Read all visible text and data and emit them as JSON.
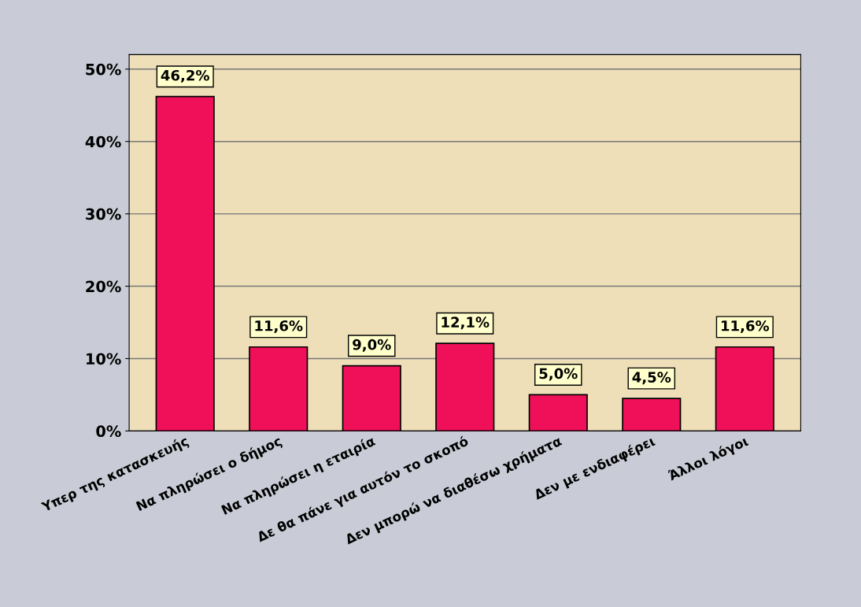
{
  "chart_data": {
    "type": "bar",
    "categories": [
      "Υπερ της κατασκευής",
      "Να πληρώσει ο δήμος",
      "Να πληρώσει η εταιρία",
      "Δε θα πάνε για αυτόν το σκοπό",
      "Δεν μπορώ να διαθέσω χρήματα",
      "Δεν με ενδιαφέρει",
      "Άλλοι λόγοι"
    ],
    "values": [
      46.2,
      11.6,
      9.0,
      12.1,
      5.0,
      4.5,
      11.6
    ],
    "value_labels": [
      "46,2%",
      "11,6%",
      "9,0%",
      "12,1%",
      "5,0%",
      "4,5%",
      "11,6%"
    ],
    "color": "#f0105a",
    "ylim": [
      0,
      52
    ],
    "yticks": [
      {
        "value": 0,
        "label": "0%"
      },
      {
        "value": 10,
        "label": "10%"
      },
      {
        "value": 20,
        "label": "20%"
      },
      {
        "value": 30,
        "label": "30%"
      },
      {
        "value": 40,
        "label": "40%"
      },
      {
        "value": 50,
        "label": "50%"
      }
    ],
    "grid": "y"
  }
}
